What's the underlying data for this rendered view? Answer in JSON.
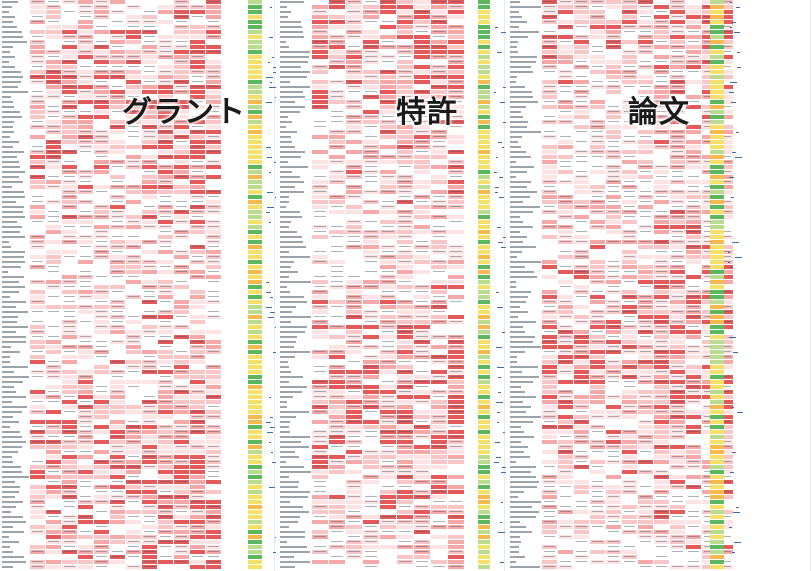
{
  "panels": [
    {
      "id": "grant",
      "label": "グラント"
    },
    {
      "id": "patent",
      "label": "特許"
    },
    {
      "id": "paper",
      "label": "論文"
    }
  ],
  "colors": {
    "background": "#ffffff",
    "heat_low": "#fde3e3",
    "heat_mid": "#f4a8a8",
    "heat_high": "#e45a5a",
    "status_green": "#5cb85c",
    "status_yellow": "#f5e16a",
    "status_orange": "#f6b94d",
    "row_text": "#4a5766",
    "link_blue": "#3a6ea8"
  }
}
